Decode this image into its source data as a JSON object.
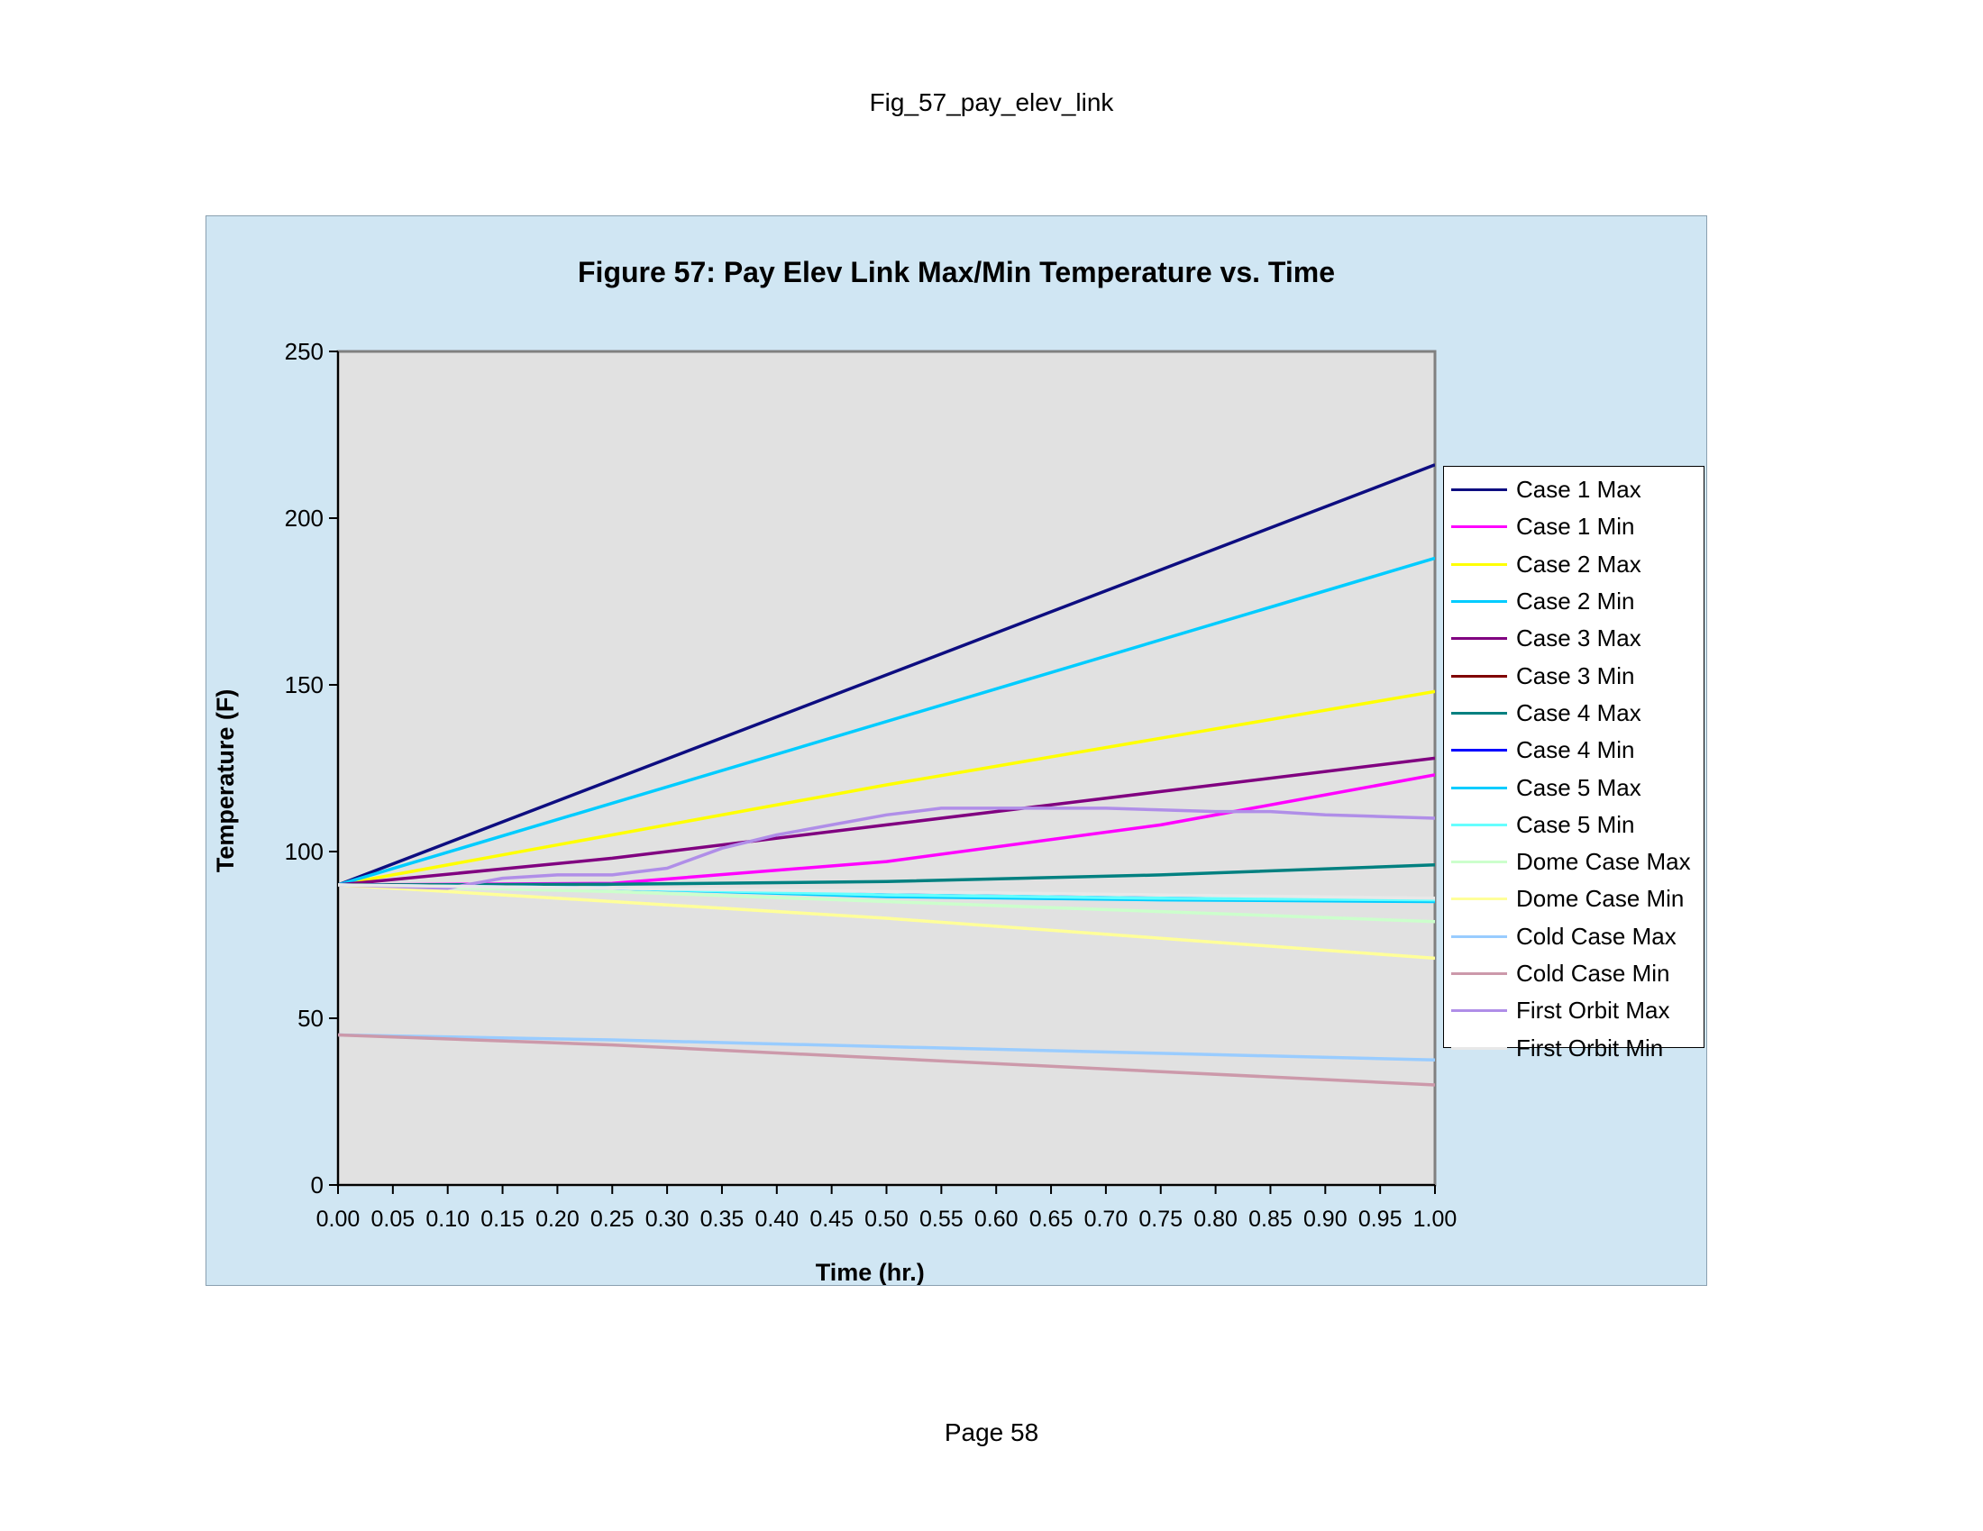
{
  "page": {
    "header": "Fig_57_pay_elev_link",
    "footer": "Page 58"
  },
  "chart_data": {
    "type": "line",
    "title": "Figure 57: Pay Elev Link Max/Min Temperature vs. Time",
    "xlabel": "Time (hr.)",
    "ylabel": "Temperature (F)",
    "xlim": [
      0,
      1
    ],
    "ylim": [
      0,
      250
    ],
    "xticks": [
      "0.00",
      "0.05",
      "0.10",
      "0.15",
      "0.20",
      "0.25",
      "0.30",
      "0.35",
      "0.40",
      "0.45",
      "0.50",
      "0.55",
      "0.60",
      "0.65",
      "0.70",
      "0.75",
      "0.80",
      "0.85",
      "0.90",
      "0.95",
      "1.00"
    ],
    "yticks": [
      "0",
      "50",
      "100",
      "150",
      "200",
      "250"
    ],
    "grid": false,
    "legend_position": "right",
    "plot_background": "#e1e1e1",
    "chart_background": "#d0e6f3",
    "series": [
      {
        "name": "Case 1 Max",
        "color": "#0d0d80",
        "x": [
          0,
          1
        ],
        "y": [
          90,
          216
        ]
      },
      {
        "name": "Case 1 Min",
        "color": "#ff00ff",
        "x": [
          0,
          0.25,
          0.5,
          0.75,
          1
        ],
        "y": [
          90,
          90.5,
          97,
          108,
          123
        ]
      },
      {
        "name": "Case 2 Max",
        "color": "#ffff00",
        "x": [
          0,
          0.25,
          0.5,
          0.75,
          1
        ],
        "y": [
          90,
          105,
          120,
          134,
          148
        ]
      },
      {
        "name": "Case 2 Min",
        "color": "#00ccff",
        "x": [
          0,
          1
        ],
        "y": [
          90,
          188
        ]
      },
      {
        "name": "Case 3 Max",
        "color": "#800080",
        "x": [
          0,
          0.25,
          0.5,
          0.75,
          1
        ],
        "y": [
          90,
          98,
          108,
          118,
          128
        ]
      },
      {
        "name": "Case 3 Min",
        "color": "#800000",
        "x": [
          0,
          0.1,
          0.15,
          0.2
        ],
        "y": [
          90,
          90,
          90,
          90
        ]
      },
      {
        "name": "Case 4 Max",
        "color": "#008080",
        "x": [
          0,
          0.25,
          0.5,
          0.75,
          1
        ],
        "y": [
          90,
          90.2,
          91,
          93,
          96
        ]
      },
      {
        "name": "Case 4 Min",
        "color": "#0000ff",
        "x": [
          0,
          0.25,
          0.5,
          0.75,
          1
        ],
        "y": [
          90,
          89,
          87,
          86,
          86
        ]
      },
      {
        "name": "Case 5 Max",
        "color": "#00ccff",
        "x": [
          0,
          0.25,
          0.5,
          0.75,
          1
        ],
        "y": [
          90,
          89,
          86.5,
          85.5,
          85
        ]
      },
      {
        "name": "Case 5 Min",
        "color": "#66ffff",
        "x": [
          0,
          0.25,
          0.5,
          0.75,
          1
        ],
        "y": [
          90,
          89,
          87,
          86,
          85.5
        ]
      },
      {
        "name": "Dome Case Max",
        "color": "#ccffcc",
        "x": [
          0,
          0.25,
          0.5,
          0.75,
          1
        ],
        "y": [
          90,
          88,
          85,
          82,
          79
        ]
      },
      {
        "name": "Dome Case Min",
        "color": "#ffff99",
        "x": [
          0,
          0.25,
          0.5,
          0.75,
          1
        ],
        "y": [
          90,
          85,
          80,
          74,
          68
        ]
      },
      {
        "name": "Cold Case Max",
        "color": "#99ccff",
        "x": [
          0,
          0.25,
          0.5,
          0.75,
          1
        ],
        "y": [
          45,
          43.5,
          41.5,
          39.5,
          37.5
        ]
      },
      {
        "name": "Cold Case Min",
        "color": "#cc99aa",
        "x": [
          0,
          0.25,
          0.5,
          0.75,
          1
        ],
        "y": [
          45,
          42,
          38,
          34,
          30
        ]
      },
      {
        "name": "First Orbit Max",
        "color": "#b08ee8",
        "x": [
          0,
          0.1,
          0.15,
          0.2,
          0.25,
          0.3,
          0.35,
          0.4,
          0.45,
          0.5,
          0.55,
          0.6,
          0.65,
          0.7,
          0.75,
          0.8,
          0.85,
          0.9,
          0.95,
          1
        ],
        "y": [
          90,
          89,
          92,
          93,
          93,
          95,
          101,
          105,
          108,
          111,
          113,
          113,
          113,
          113,
          112.5,
          112,
          112,
          111,
          110.5,
          110
        ]
      },
      {
        "name": "First Orbit Min",
        "color": "#e8e8e8",
        "x": [
          0,
          0.25,
          0.5,
          0.75,
          1
        ],
        "y": [
          90,
          89,
          88,
          87,
          86
        ]
      }
    ]
  }
}
